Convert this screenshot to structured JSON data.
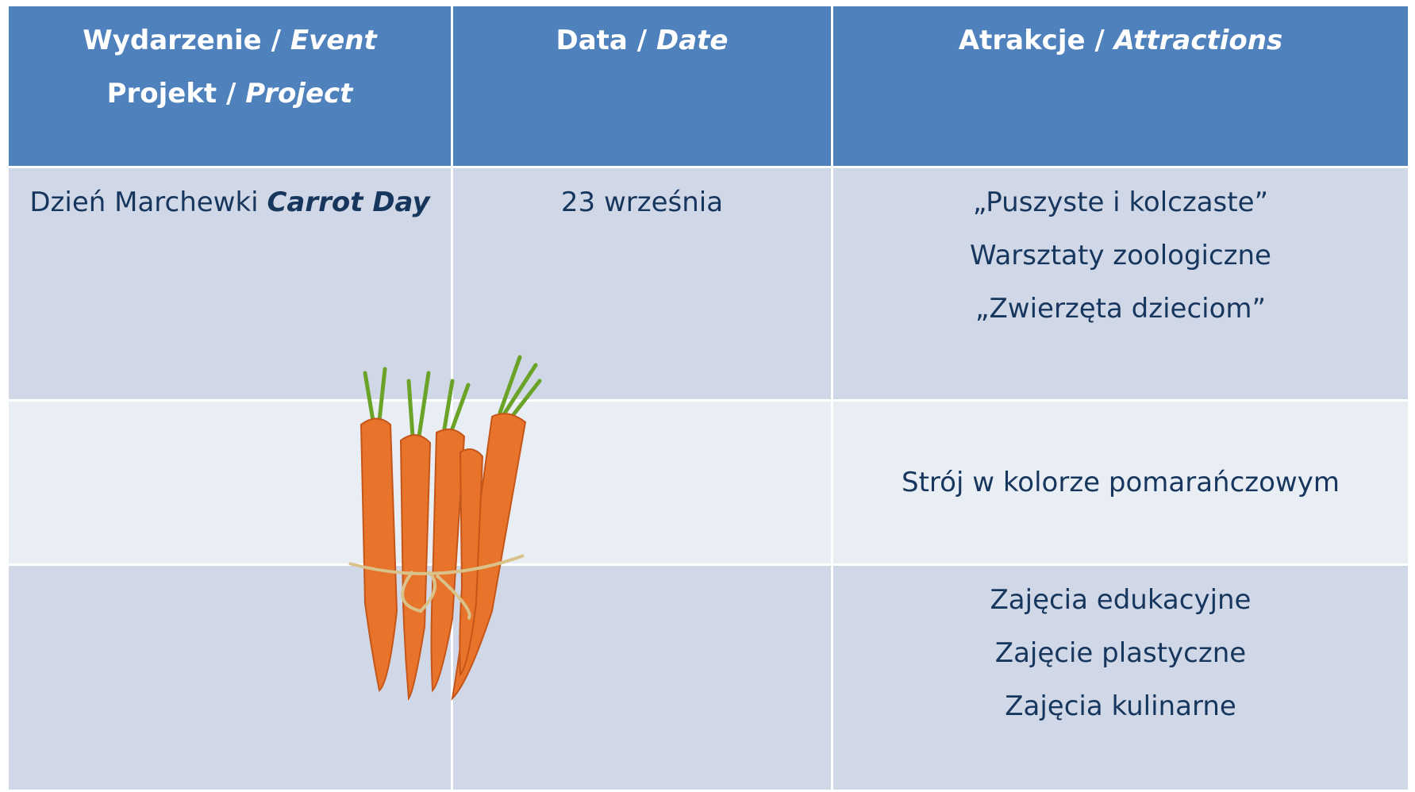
{
  "table": {
    "header": [
      [
        [
          {
            "text": "Wydarzenie /"
          },
          {
            "text": "Event",
            "italic": true
          }
        ],
        [
          {
            "text": "Projekt /"
          },
          {
            "text": "Project",
            "italic": true
          }
        ]
      ],
      [
        [
          {
            "text": "Data /"
          },
          {
            "text": "Date",
            "italic": true
          }
        ]
      ],
      [
        [
          {
            "text": "Atrakcje /"
          },
          {
            "text": "Attractions",
            "italic": true
          }
        ]
      ]
    ],
    "rows": [
      [
        [
          [
            {
              "text": "Dzień Marchewki"
            },
            {
              "text": "Carrot Day",
              "italic": true,
              "bold": true
            }
          ]
        ],
        [
          [
            {
              "text": "23 września"
            }
          ]
        ],
        [
          [
            {
              "text": "„Puszyste i kolczaste”"
            }
          ],
          [
            {
              "text": "Warsztaty zoologiczne"
            }
          ],
          [
            {
              "text": "„Zwierzęta dzieciom”"
            }
          ]
        ]
      ],
      [
        [],
        [],
        [
          [
            {
              "text": "Strój w kolorze pomarańczowym"
            }
          ]
        ]
      ],
      [
        [],
        [],
        [
          [
            {
              "text": "Zajęcia edukacyjne"
            }
          ],
          [
            {
              "text": "Zajęcie plastyczne"
            }
          ],
          [
            {
              "text": "Zajęcia kulinarne"
            }
          ]
        ]
      ]
    ]
  }
}
